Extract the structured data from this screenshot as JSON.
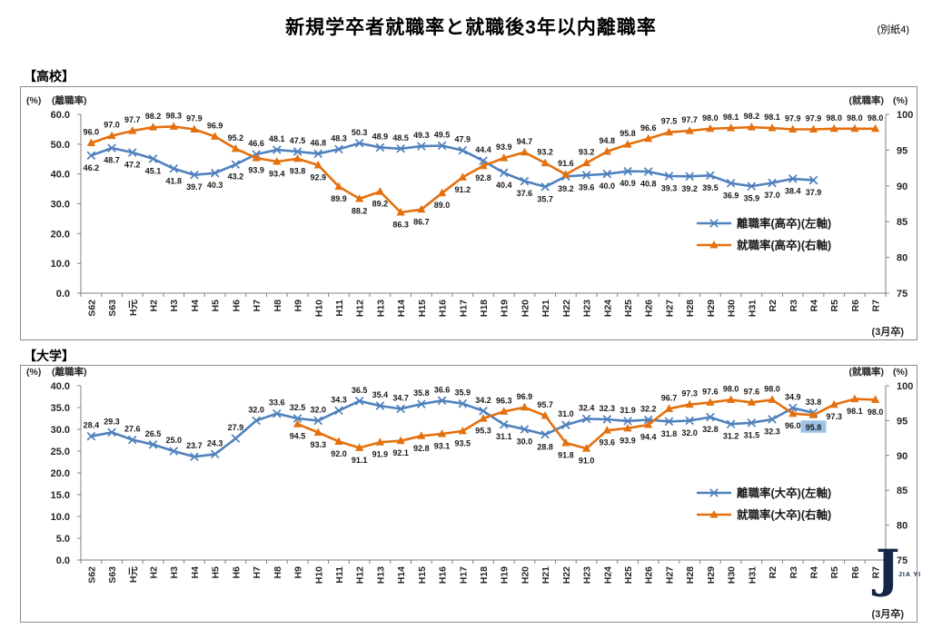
{
  "page_title": "新規学卒者就職率と就職後3年以内離職率",
  "annex_label": "(別紙4)",
  "watermark": {
    "initial": "J",
    "caption": "JIA YI"
  },
  "colors": {
    "turnover_line": "#4F81BD",
    "employment_line": "#E4700E",
    "label_text": "#1a1a1a",
    "axis_text": "#262626",
    "highlight_bg": "#9DC3E6",
    "border": "#8c8c8c"
  },
  "chart_data": [
    {
      "type": "line",
      "section_label": "【高校】",
      "cohort_label": "(3月卒)",
      "legend_position": "inside-right",
      "grid": false,
      "categories": [
        "S62",
        "S63",
        "H元",
        "H2",
        "H3",
        "H4",
        "H5",
        "H6",
        "H7",
        "H8",
        "H9",
        "H10",
        "H11",
        "H12",
        "H13",
        "H14",
        "H15",
        "H16",
        "H17",
        "H18",
        "H19",
        "H20",
        "H21",
        "H22",
        "H23",
        "H24",
        "H25",
        "H26",
        "H27",
        "H28",
        "H29",
        "H30",
        "H31",
        "R2",
        "R3",
        "R4",
        "R5",
        "R6",
        "R7"
      ],
      "left_axis": {
        "unit_label": "(%)",
        "series_label": "(離職率)",
        "min": 0,
        "max": 60,
        "step": 10,
        "decimals": 1
      },
      "right_axis": {
        "unit_label": "(%)",
        "series_label": "(就職率)",
        "min": 75,
        "max": 100,
        "step": 5,
        "decimals": 0
      },
      "series": [
        {
          "name": "turnover",
          "legend": "離職率(高卒)(左軸)",
          "axis": "left",
          "marker": "x",
          "values": [
            46.2,
            48.7,
            47.2,
            45.1,
            41.8,
            39.7,
            40.3,
            43.2,
            46.6,
            48.1,
            47.5,
            46.8,
            48.3,
            50.3,
            48.9,
            48.5,
            49.3,
            49.5,
            47.9,
            44.4,
            40.4,
            37.6,
            35.7,
            39.2,
            39.6,
            40.0,
            40.9,
            40.8,
            39.3,
            39.2,
            39.5,
            36.9,
            35.9,
            37.0,
            38.4,
            37.9,
            null,
            null,
            null
          ]
        },
        {
          "name": "employment",
          "legend": "就職率(高卒)(右軸)",
          "axis": "right",
          "marker": "triangle",
          "values": [
            96.0,
            97.0,
            97.7,
            98.2,
            98.3,
            97.9,
            96.9,
            95.2,
            93.9,
            93.4,
            93.8,
            92.9,
            89.9,
            88.2,
            89.2,
            86.3,
            86.7,
            89.0,
            91.2,
            92.8,
            93.9,
            94.7,
            93.2,
            91.6,
            93.2,
            94.8,
            95.8,
            96.6,
            97.5,
            97.7,
            98.0,
            98.1,
            98.2,
            98.1,
            97.9,
            97.9,
            98.0,
            98.0,
            98.0
          ]
        }
      ]
    },
    {
      "type": "line",
      "section_label": "【大学】",
      "cohort_label": "(3月卒)",
      "legend_position": "inside-right",
      "grid": false,
      "highlight": {
        "series": "employment",
        "index": 35,
        "value": 95.8
      },
      "categories": [
        "S62",
        "S63",
        "H元",
        "H2",
        "H3",
        "H4",
        "H5",
        "H6",
        "H7",
        "H8",
        "H9",
        "H10",
        "H11",
        "H12",
        "H13",
        "H14",
        "H15",
        "H16",
        "H17",
        "H18",
        "H19",
        "H20",
        "H21",
        "H22",
        "H23",
        "H24",
        "H25",
        "H26",
        "H27",
        "H28",
        "H29",
        "H30",
        "H31",
        "R2",
        "R3",
        "R4",
        "R5",
        "R6",
        "R7"
      ],
      "left_axis": {
        "unit_label": "(%)",
        "series_label": "(離職率)",
        "min": 0,
        "max": 40,
        "step": 5,
        "decimals": 1
      },
      "right_axis": {
        "unit_label": "(%)",
        "series_label": "(就職率)",
        "min": 75,
        "max": 100,
        "step": 5,
        "decimals": 0
      },
      "series": [
        {
          "name": "turnover",
          "legend": "離職率(大卒)(左軸)",
          "axis": "left",
          "marker": "x",
          "values": [
            28.4,
            29.3,
            27.6,
            26.5,
            25.0,
            23.7,
            24.3,
            27.9,
            32.0,
            33.6,
            32.5,
            32.0,
            34.3,
            36.5,
            35.4,
            34.7,
            35.8,
            36.6,
            35.9,
            34.2,
            31.1,
            30.0,
            28.8,
            31.0,
            32.4,
            32.3,
            31.9,
            32.2,
            31.8,
            32.0,
            32.8,
            31.2,
            31.5,
            32.3,
            34.9,
            33.8,
            null,
            null,
            null
          ]
        },
        {
          "name": "employment",
          "legend": "就職率(大卒)(右軸)",
          "axis": "right",
          "marker": "triangle",
          "values": [
            null,
            null,
            null,
            null,
            null,
            null,
            null,
            null,
            null,
            null,
            94.5,
            93.3,
            92.0,
            91.1,
            91.9,
            92.1,
            92.8,
            93.1,
            93.5,
            95.3,
            96.3,
            96.9,
            95.7,
            91.8,
            91.0,
            93.6,
            93.9,
            94.4,
            96.7,
            97.3,
            97.6,
            98.0,
            97.6,
            98.0,
            96.0,
            95.8,
            97.3,
            98.1,
            98.0
          ]
        }
      ]
    }
  ]
}
